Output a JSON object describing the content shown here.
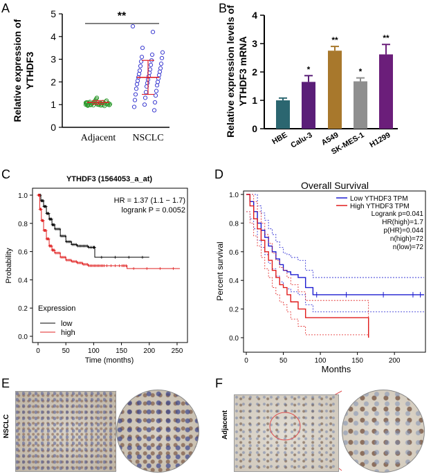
{
  "panels": {
    "A": {
      "letter": "A",
      "ylabel_line1": "Relative expression of",
      "ylabel_line2": "YTHDF3",
      "yticks": [
        "0",
        "1",
        "2",
        "3",
        "4",
        "5"
      ],
      "categories": [
        "Adjacent",
        "NSCLC"
      ],
      "significance": "**"
    },
    "B": {
      "letter": "B",
      "ylabel_line1": "Relative expression levels of",
      "ylabel_line2": "YTHDF3 mRNA",
      "yticks": [
        "0",
        "1",
        "2",
        "3",
        "4"
      ],
      "categories": [
        "HBE",
        "Calu-3",
        "A549",
        "SK-MES-1",
        "H1299"
      ],
      "stars": [
        "",
        "*",
        "**",
        "*",
        "**"
      ]
    },
    "C": {
      "letter": "C",
      "title": "YTHDF3 (1564053_a_at)",
      "hr_text": "HR = 1.37 (1.1 − 1.7)",
      "logrank_text": "logrank P = 0.0052",
      "ylabel": "Probability",
      "xlabel": "Time (months)",
      "yticks": [
        "0.0",
        "0.2",
        "0.4",
        "0.6",
        "0.8",
        "1.0"
      ],
      "xticks": [
        "0",
        "50",
        "100",
        "150",
        "200",
        "250"
      ],
      "legend_title": "Expression",
      "legend_low": "low",
      "legend_high": "high"
    },
    "D": {
      "letter": "D",
      "title": "Overall Survival",
      "ylabel": "Percent survival",
      "xlabel": "Months",
      "yticks": [
        "0.0",
        "0.2",
        "0.4",
        "0.6",
        "0.8",
        "1.0"
      ],
      "xticks": [
        "0",
        "50",
        "100",
        "150",
        "200"
      ],
      "legend_low": "Low YTHDF3 TPM",
      "legend_high": "High YTHDF3 TPM",
      "stats": [
        "Logrank p=0.041",
        "HR(high)=1.7",
        "p(HR)=0.044",
        "n(high)=72",
        "n(low)=72"
      ]
    },
    "E": {
      "letter": "E",
      "side_label": "NSCLC"
    },
    "F": {
      "letter": "F",
      "side_label": "Adjacent"
    }
  },
  "colors": {
    "green": "#2f9a2f",
    "blue_scatter": "#3a3ad0",
    "red_bar": "#e0202a",
    "hbe": "#2b6670",
    "calu3": "#5a1e78",
    "a549": "#a8782c",
    "skmes": "#8f8f8f",
    "h1299": "#6b1e7a",
    "km_low": "#000000",
    "km_high": "#e02020",
    "gepia_low": "#1a1ad0",
    "gepia_high": "#e01a1a"
  },
  "chart_data": [
    {
      "id": "A",
      "type": "scatter",
      "title": "",
      "xlabel": "",
      "ylabel": "Relative expression of YTHDF3",
      "ylim": [
        0,
        5
      ],
      "categories": [
        "Adjacent",
        "NSCLC"
      ],
      "series": [
        {
          "name": "Adjacent",
          "mean": 1.1,
          "sd": 0.08,
          "values": [
            1.0,
            1.05,
            1.1,
            0.95,
            1.02,
            1.08,
            1.12,
            0.98,
            1.0,
            1.04,
            1.06,
            0.97,
            1.1,
            1.15,
            1.2,
            1.25,
            1.3,
            1.0,
            1.02,
            0.99,
            1.03,
            1.07,
            0.96,
            1.01,
            1.09,
            1.11,
            1.0,
            0.94,
            1.05,
            1.13,
            1.18,
            1.04,
            1.0,
            1.06,
            0.98,
            1.02,
            1.08,
            1.1,
            0.97,
            1.0
          ]
        },
        {
          "name": "NSCLC",
          "mean": 2.2,
          "sd": 0.75,
          "values": [
            4.45,
            4.2,
            3.5,
            3.3,
            3.2,
            3.1,
            3.05,
            2.95,
            2.9,
            2.8,
            2.75,
            2.7,
            2.6,
            2.55,
            2.5,
            2.45,
            2.4,
            2.35,
            2.3,
            2.25,
            2.2,
            2.15,
            2.1,
            2.05,
            2.0,
            1.95,
            1.9,
            1.85,
            1.8,
            1.7,
            1.6,
            1.55,
            1.45,
            1.4,
            1.3,
            1.2,
            1.1,
            1.0,
            0.9,
            0.75
          ]
        }
      ],
      "significance": "**"
    },
    {
      "id": "B",
      "type": "bar",
      "title": "",
      "xlabel": "",
      "ylabel": "Relative expression levels of YTHDF3 mRNA",
      "ylim": [
        0,
        4
      ],
      "categories": [
        "HBE",
        "Calu-3",
        "A549",
        "SK-MES-1",
        "H1299"
      ],
      "values": [
        1.0,
        1.65,
        2.75,
        1.67,
        2.62
      ],
      "errors": [
        0.08,
        0.22,
        0.15,
        0.12,
        0.35
      ],
      "stars": [
        "",
        "*",
        "**",
        "*",
        "**"
      ]
    },
    {
      "id": "C",
      "type": "line",
      "title": "YTHDF3 (1564053_a_at)",
      "xlabel": "Time (months)",
      "ylabel": "Probability",
      "xlim": [
        0,
        260
      ],
      "ylim": [
        0,
        1
      ],
      "series": [
        {
          "name": "low",
          "x": [
            0,
            5,
            10,
            15,
            20,
            25,
            30,
            40,
            50,
            60,
            70,
            80,
            90,
            100,
            102,
            200
          ],
          "y": [
            1.0,
            0.96,
            0.92,
            0.87,
            0.83,
            0.79,
            0.76,
            0.71,
            0.67,
            0.65,
            0.64,
            0.64,
            0.63,
            0.63,
            0.56,
            0.56
          ]
        },
        {
          "name": "high",
          "x": [
            0,
            3,
            6,
            10,
            15,
            20,
            25,
            30,
            40,
            50,
            60,
            70,
            80,
            90,
            100,
            110,
            120,
            150,
            160,
            255
          ],
          "y": [
            1.0,
            0.9,
            0.82,
            0.75,
            0.69,
            0.64,
            0.61,
            0.59,
            0.56,
            0.54,
            0.53,
            0.52,
            0.51,
            0.5,
            0.5,
            0.5,
            0.5,
            0.5,
            0.48,
            0.48
          ]
        }
      ],
      "annotations": [
        "HR = 1.37 (1.1 − 1.7)",
        "logrank P = 0.0052"
      ],
      "legend": {
        "title": "Expression",
        "entries": [
          "low",
          "high"
        ],
        "position": "bottom-left"
      }
    },
    {
      "id": "D",
      "type": "line",
      "title": "Overall Survival",
      "xlabel": "Months",
      "ylabel": "Percent survival",
      "xlim": [
        0,
        240
      ],
      "ylim": [
        0,
        1
      ],
      "series": [
        {
          "name": "Low YTHDF3 TPM",
          "x": [
            0,
            5,
            10,
            15,
            20,
            25,
            30,
            35,
            40,
            45,
            50,
            55,
            60,
            70,
            80,
            90,
            240
          ],
          "y": [
            1.0,
            0.95,
            0.88,
            0.8,
            0.75,
            0.7,
            0.64,
            0.6,
            0.55,
            0.51,
            0.47,
            0.46,
            0.44,
            0.42,
            0.35,
            0.3,
            0.3
          ]
        },
        {
          "name": "High YTHDF3 TPM",
          "x": [
            0,
            5,
            10,
            15,
            20,
            25,
            30,
            35,
            40,
            45,
            50,
            55,
            60,
            70,
            80,
            165
          ],
          "y": [
            1.0,
            0.92,
            0.83,
            0.76,
            0.68,
            0.6,
            0.54,
            0.47,
            0.42,
            0.37,
            0.35,
            0.3,
            0.25,
            0.2,
            0.14,
            0.0
          ]
        }
      ],
      "annotations": [
        "Logrank p=0.041",
        "HR(high)=1.7",
        "p(HR)=0.044",
        "n(high)=72",
        "n(low)=72"
      ],
      "legend": {
        "entries": [
          "Low YTHDF3 TPM",
          "High YTHDF3 TPM"
        ],
        "position": "top-right"
      }
    }
  ]
}
